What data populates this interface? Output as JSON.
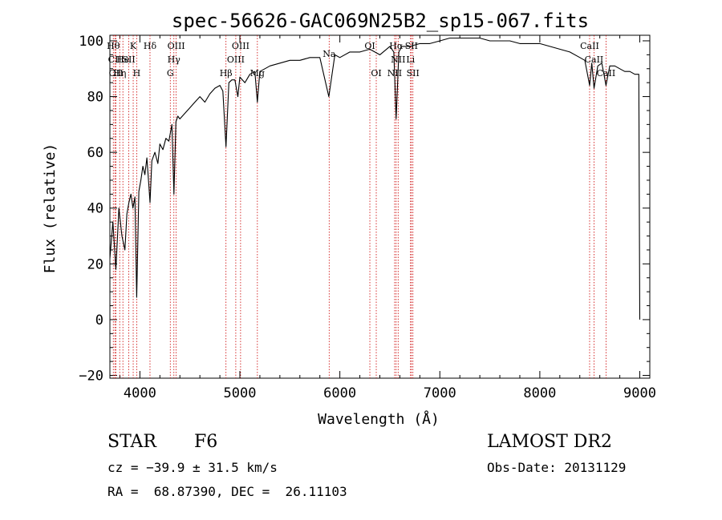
{
  "chart_data": {
    "type": "line",
    "title": "spec-56626-GAC069N25B2_sp15-067.fits",
    "xlabel": "Wavelength (Å)",
    "ylabel": "Flux (relative)",
    "xlim": [
      3700,
      9100
    ],
    "ylim": [
      -21,
      102
    ],
    "xticks": [
      4000,
      5000,
      6000,
      7000,
      8000,
      9000
    ],
    "yticks": [
      -20,
      0,
      20,
      40,
      60,
      80,
      100
    ],
    "grid": false,
    "series": [
      {
        "x": [
          3700,
          3730,
          3760,
          3790,
          3820,
          3850,
          3870,
          3890,
          3910,
          3930,
          3950,
          3968,
          3990,
          4010,
          4030,
          4050,
          4070,
          4090,
          4101,
          4120,
          4150,
          4180,
          4200,
          4230,
          4260,
          4290,
          4320,
          4340,
          4360,
          4380,
          4400,
          4450,
          4500,
          4550,
          4600,
          4650,
          4700,
          4750,
          4800,
          4830,
          4861,
          4890,
          4920,
          4950,
          4980,
          5000,
          5050,
          5100,
          5150,
          5175,
          5200,
          5250,
          5300,
          5400,
          5500,
          5600,
          5700,
          5800,
          5890,
          5950,
          6000,
          6100,
          6200,
          6300,
          6400,
          6500,
          6540,
          6563,
          6590,
          6620,
          6700,
          6800,
          6900,
          7000,
          7100,
          7200,
          7300,
          7400,
          7500,
          7600,
          7700,
          7800,
          7900,
          8000,
          8100,
          8200,
          8300,
          8400,
          8450,
          8498,
          8520,
          8542,
          8580,
          8620,
          8662,
          8700,
          8750,
          8800,
          8850,
          8900,
          8950,
          8990,
          9000
        ],
        "y": [
          22,
          35,
          18,
          40,
          30,
          25,
          38,
          42,
          45,
          40,
          44,
          8,
          46,
          50,
          55,
          52,
          58,
          48,
          42,
          57,
          60,
          56,
          63,
          61,
          65,
          64,
          70,
          45,
          71,
          73,
          72,
          74,
          76,
          78,
          80,
          78,
          81,
          83,
          84,
          82,
          62,
          85,
          86,
          86,
          80,
          87,
          85,
          88,
          89,
          78,
          89,
          90,
          91,
          92,
          93,
          93,
          94,
          94,
          80,
          95,
          94,
          96,
          96,
          97,
          95,
          98,
          96,
          72,
          96,
          98,
          98,
          99,
          99,
          100,
          101,
          101,
          101,
          101,
          100,
          100,
          100,
          99,
          99,
          99,
          98,
          97,
          96,
          94,
          93,
          84,
          92,
          83,
          91,
          92,
          84,
          91,
          91,
          90,
          89,
          89,
          88,
          88,
          0
        ]
      }
    ],
    "line_labels": [
      {
        "wavelength": 3734,
        "label": "Hθ",
        "row": 0
      },
      {
        "wavelength": 3750,
        "label": "CII",
        "row": 1
      },
      {
        "wavelength": 3760,
        "label": "OII",
        "row": 2
      },
      {
        "wavelength": 3798,
        "label": "Hη",
        "row": 2
      },
      {
        "wavelength": 3830,
        "label": "He",
        "row": 1
      },
      {
        "wavelength": 3889,
        "label": "SII",
        "row": 1
      },
      {
        "wavelength": 3933,
        "label": "K",
        "row": 0
      },
      {
        "wavelength": 3968,
        "label": "H",
        "row": 2
      },
      {
        "wavelength": 4101,
        "label": "Hδ",
        "row": 0
      },
      {
        "wavelength": 4304,
        "label": "G",
        "row": 2
      },
      {
        "wavelength": 4340,
        "label": "Hγ",
        "row": 1
      },
      {
        "wavelength": 4363,
        "label": "OIII",
        "row": 0
      },
      {
        "wavelength": 4861,
        "label": "Hβ",
        "row": 2
      },
      {
        "wavelength": 4959,
        "label": "OIII",
        "row": 1
      },
      {
        "wavelength": 5007,
        "label": "OIII",
        "row": 0
      },
      {
        "wavelength": 5175,
        "label": "Mg",
        "row": 2
      },
      {
        "wavelength": 5893,
        "label": "Na",
        "row": 0.6
      },
      {
        "wavelength": 6300,
        "label": "OI",
        "row": 0
      },
      {
        "wavelength": 6364,
        "label": "OI",
        "row": 2
      },
      {
        "wavelength": 6563,
        "label": "Hα",
        "row": 0
      },
      {
        "wavelength": 6583,
        "label": "NII",
        "row": 1
      },
      {
        "wavelength": 6548,
        "label": "NII",
        "row": 2
      },
      {
        "wavelength": 6716,
        "label": "SII",
        "row": 0
      },
      {
        "wavelength": 6707,
        "label": "Li",
        "row": 1
      },
      {
        "wavelength": 6731,
        "label": "SII",
        "row": 2
      },
      {
        "wavelength": 8498,
        "label": "CaII",
        "row": 0
      },
      {
        "wavelength": 8542,
        "label": "CaII",
        "row": 1
      },
      {
        "wavelength": 8662,
        "label": "CaII",
        "row": 2
      }
    ]
  },
  "info": {
    "object_class": "STAR",
    "subclass": "F6",
    "survey": "LAMOST DR2",
    "redshift": "cz = −39.9 ± 31.5 km/s",
    "obs_date": "Obs-Date: 20131129",
    "coords": "RA =  68.87390, DEC =  26.11103"
  },
  "colors": {
    "spectrum": "#000000",
    "line_markers": "#cc0000",
    "axes": "#000000"
  }
}
